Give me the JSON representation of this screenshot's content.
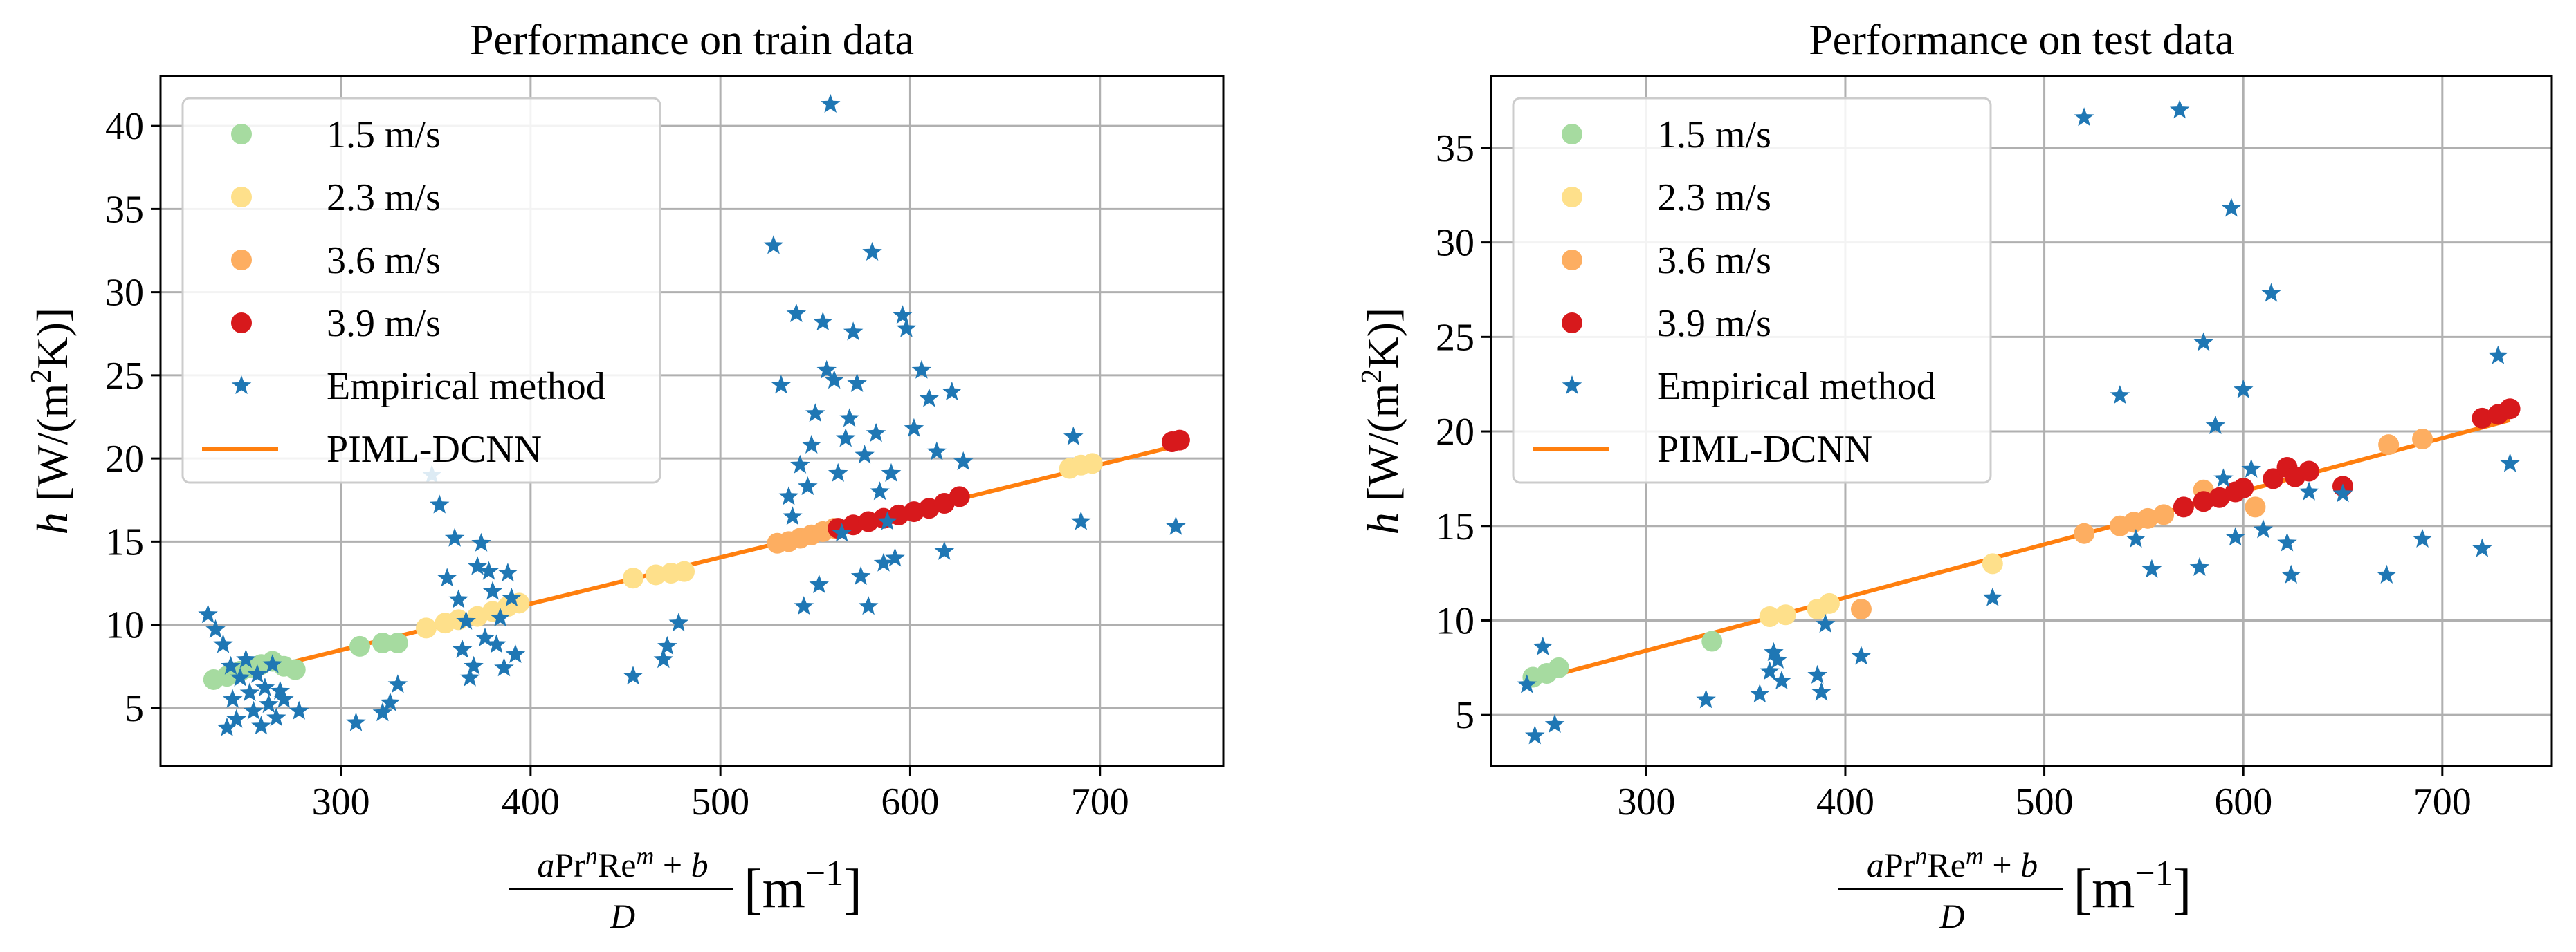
{
  "chart_data": [
    {
      "type": "scatter",
      "title": "Performance on train data",
      "xlabel": "aPr^n Re^m + b / D [m^-1]",
      "ylabel": "h [W/(m^2K)]",
      "xlim": [
        205,
        765
      ],
      "ylim": [
        1.5,
        43
      ],
      "xticks": [
        "300",
        "400",
        "500",
        "600",
        "700"
      ],
      "yticks": [
        "5",
        "10",
        "15",
        "20",
        "25",
        "30",
        "35",
        "40"
      ],
      "grid": true,
      "legend_position": "top-left",
      "legend": [
        "1.5 m/s",
        "2.3 m/s",
        "3.6 m/s",
        "3.9 m/s",
        "Empirical method",
        "PIML-DCNN"
      ],
      "series": [
        {
          "name": "1.5 m/s",
          "color": "#a6dba0",
          "points": [
            [
              233,
              6.7
            ],
            [
              240,
              6.9
            ],
            [
              247,
              7.2
            ],
            [
              253,
              7.4
            ],
            [
              258,
              7.6
            ],
            [
              264,
              7.8
            ],
            [
              270,
              7.5
            ],
            [
              276,
              7.3
            ],
            [
              310,
              8.7
            ],
            [
              322,
              8.9
            ],
            [
              330,
              8.9
            ]
          ]
        },
        {
          "name": "2.3 m/s",
          "color": "#fee08b",
          "points": [
            [
              345,
              9.8
            ],
            [
              355,
              10.1
            ],
            [
              362,
              10.3
            ],
            [
              372,
              10.5
            ],
            [
              380,
              10.8
            ],
            [
              388,
              11.1
            ],
            [
              394,
              11.3
            ],
            [
              454,
              12.8
            ],
            [
              466,
              13.0
            ],
            [
              474,
              13.1
            ],
            [
              481,
              13.2
            ],
            [
              684,
              19.4
            ],
            [
              690,
              19.6
            ],
            [
              696,
              19.7
            ]
          ]
        },
        {
          "name": "3.6 m/s",
          "color": "#fdae61",
          "points": [
            [
              530,
              14.9
            ],
            [
              536,
              15.0
            ],
            [
              542,
              15.2
            ],
            [
              548,
              15.4
            ],
            [
              554,
              15.6
            ],
            [
              560,
              15.8
            ]
          ]
        },
        {
          "name": "3.9 m/s",
          "color": "#d7191c",
          "points": [
            [
              562,
              15.8
            ],
            [
              570,
              16.0
            ],
            [
              578,
              16.2
            ],
            [
              586,
              16.4
            ],
            [
              594,
              16.6
            ],
            [
              602,
              16.8
            ],
            [
              610,
              17.0
            ],
            [
              618,
              17.3
            ],
            [
              626,
              17.7
            ],
            [
              738,
              21.0
            ],
            [
              742,
              21.1
            ]
          ]
        },
        {
          "name": "Empirical method",
          "color": "#1f77b4",
          "marker": "star",
          "points": [
            [
              230,
              10.6
            ],
            [
              234,
              9.7
            ],
            [
              238,
              8.8
            ],
            [
              240,
              3.8
            ],
            [
              242,
              7.5
            ],
            [
              243,
              5.5
            ],
            [
              245,
              4.3
            ],
            [
              247,
              6.8
            ],
            [
              250,
              7.9
            ],
            [
              252,
              5.9
            ],
            [
              254,
              4.8
            ],
            [
              256,
              7.0
            ],
            [
              258,
              3.9
            ],
            [
              260,
              6.2
            ],
            [
              262,
              5.2
            ],
            [
              264,
              7.6
            ],
            [
              266,
              4.4
            ],
            [
              268,
              6.0
            ],
            [
              270,
              5.5
            ],
            [
              278,
              4.8
            ],
            [
              308,
              4.1
            ],
            [
              322,
              4.7
            ],
            [
              326,
              5.3
            ],
            [
              330,
              6.4
            ],
            [
              348,
              19.0
            ],
            [
              352,
              17.2
            ],
            [
              356,
              12.8
            ],
            [
              360,
              15.2
            ],
            [
              362,
              11.5
            ],
            [
              364,
              8.5
            ],
            [
              366,
              10.2
            ],
            [
              368,
              6.8
            ],
            [
              370,
              7.5
            ],
            [
              372,
              13.5
            ],
            [
              374,
              14.9
            ],
            [
              376,
              9.2
            ],
            [
              378,
              13.2
            ],
            [
              380,
              12.0
            ],
            [
              382,
              8.8
            ],
            [
              384,
              10.4
            ],
            [
              386,
              7.4
            ],
            [
              388,
              13.1
            ],
            [
              390,
              11.6
            ],
            [
              392,
              8.2
            ],
            [
              454,
              6.9
            ],
            [
              470,
              7.9
            ],
            [
              472,
              8.7
            ],
            [
              478,
              10.1
            ],
            [
              528,
              32.8
            ],
            [
              532,
              24.4
            ],
            [
              536,
              17.7
            ],
            [
              538,
              16.5
            ],
            [
              540,
              28.7
            ],
            [
              542,
              19.6
            ],
            [
              544,
              11.1
            ],
            [
              546,
              18.3
            ],
            [
              548,
              20.8
            ],
            [
              550,
              22.7
            ],
            [
              552,
              12.4
            ],
            [
              554,
              28.2
            ],
            [
              556,
              25.3
            ],
            [
              558,
              41.3
            ],
            [
              560,
              24.7
            ],
            [
              562,
              19.1
            ],
            [
              564,
              15.5
            ],
            [
              566,
              21.2
            ],
            [
              568,
              22.4
            ],
            [
              570,
              27.6
            ],
            [
              572,
              24.5
            ],
            [
              574,
              12.9
            ],
            [
              576,
              20.2
            ],
            [
              578,
              11.1
            ],
            [
              580,
              32.4
            ],
            [
              582,
              21.5
            ],
            [
              584,
              18.0
            ],
            [
              586,
              13.7
            ],
            [
              588,
              16.2
            ],
            [
              590,
              19.1
            ],
            [
              592,
              14.0
            ],
            [
              596,
              28.6
            ],
            [
              598,
              27.8
            ],
            [
              602,
              21.8
            ],
            [
              606,
              25.3
            ],
            [
              610,
              23.6
            ],
            [
              614,
              20.4
            ],
            [
              618,
              14.4
            ],
            [
              622,
              24.0
            ],
            [
              628,
              19.8
            ],
            [
              686,
              21.3
            ],
            [
              690,
              16.2
            ],
            [
              740,
              15.9
            ]
          ]
        },
        {
          "name": "PIML-DCNN",
          "color": "#ff7f0e",
          "type": "line",
          "points": [
            [
              233,
              6.6
            ],
            [
              742,
              20.8
            ]
          ]
        }
      ]
    },
    {
      "type": "scatter",
      "title": "Performance on test data",
      "xlabel": "aPr^n Re^m + b / D [m^-1]",
      "ylabel": "h [W/(m^2K)]",
      "xlim": [
        222,
        755
      ],
      "ylim": [
        2.3,
        38.8
      ],
      "xticks": [
        "300",
        "400",
        "500",
        "600",
        "700"
      ],
      "yticks": [
        "5",
        "10",
        "15",
        "20",
        "25",
        "30",
        "35"
      ],
      "grid": true,
      "legend_position": "top-left",
      "legend": [
        "1.5 m/s",
        "2.3 m/s",
        "3.6 m/s",
        "3.9 m/s",
        "Empirical method",
        "PIML-DCNN"
      ],
      "series": [
        {
          "name": "1.5 m/s",
          "color": "#a6dba0",
          "points": [
            [
              243,
              7.0
            ],
            [
              250,
              7.2
            ],
            [
              256,
              7.5
            ],
            [
              333,
              8.9
            ]
          ]
        },
        {
          "name": "2.3 m/s",
          "color": "#fee08b",
          "points": [
            [
              362,
              10.2
            ],
            [
              370,
              10.3
            ],
            [
              386,
              10.6
            ],
            [
              392,
              10.9
            ],
            [
              474,
              13.0
            ]
          ]
        },
        {
          "name": "3.6 m/s",
          "color": "#fdae61",
          "points": [
            [
              408,
              10.6
            ],
            [
              520,
              14.6
            ],
            [
              538,
              15.0
            ],
            [
              545,
              15.2
            ],
            [
              552,
              15.4
            ],
            [
              560,
              15.6
            ],
            [
              580,
              16.9
            ],
            [
              606,
              16.0
            ],
            [
              673,
              19.3
            ],
            [
              690,
              19.6
            ]
          ]
        },
        {
          "name": "3.9 m/s",
          "color": "#d7191c",
          "points": [
            [
              570,
              16.0
            ],
            [
              580,
              16.3
            ],
            [
              588,
              16.5
            ],
            [
              596,
              16.8
            ],
            [
              600,
              17.0
            ],
            [
              615,
              17.5
            ],
            [
              622,
              18.1
            ],
            [
              626,
              17.6
            ],
            [
              633,
              17.9
            ],
            [
              650,
              17.1
            ],
            [
              720,
              20.7
            ],
            [
              728,
              20.9
            ],
            [
              734,
              21.2
            ]
          ]
        },
        {
          "name": "Empirical method",
          "color": "#1f77b4",
          "marker": "star",
          "points": [
            [
              240,
              6.6
            ],
            [
              244,
              3.9
            ],
            [
              248,
              8.6
            ],
            [
              254,
              4.5
            ],
            [
              330,
              5.8
            ],
            [
              357,
              6.1
            ],
            [
              362,
              7.3
            ],
            [
              364,
              8.3
            ],
            [
              366,
              7.9
            ],
            [
              368,
              6.8
            ],
            [
              386,
              7.1
            ],
            [
              388,
              6.2
            ],
            [
              390,
              9.8
            ],
            [
              408,
              8.1
            ],
            [
              474,
              11.2
            ],
            [
              520,
              36.6
            ],
            [
              538,
              21.9
            ],
            [
              546,
              14.3
            ],
            [
              554,
              12.7
            ],
            [
              568,
              37.0
            ],
            [
              578,
              12.8
            ],
            [
              580,
              24.7
            ],
            [
              586,
              20.3
            ],
            [
              590,
              17.5
            ],
            [
              594,
              31.8
            ],
            [
              596,
              14.4
            ],
            [
              600,
              22.2
            ],
            [
              604,
              18.0
            ],
            [
              610,
              14.8
            ],
            [
              614,
              27.3
            ],
            [
              622,
              14.1
            ],
            [
              624,
              12.4
            ],
            [
              633,
              16.8
            ],
            [
              650,
              16.7
            ],
            [
              672,
              12.4
            ],
            [
              690,
              14.3
            ],
            [
              720,
              13.8
            ],
            [
              728,
              24.0
            ],
            [
              734,
              18.3
            ]
          ]
        },
        {
          "name": "PIML-DCNN",
          "color": "#ff7f0e",
          "type": "line",
          "points": [
            [
              243,
              6.8
            ],
            [
              734,
              20.6
            ]
          ]
        }
      ]
    }
  ]
}
